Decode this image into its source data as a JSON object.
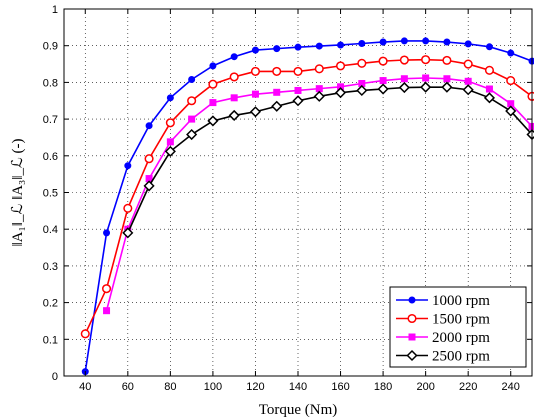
{
  "chart_data": {
    "type": "line",
    "xlabel": "Torque (Nm)",
    "ylabel": "‖A₁‖_ℒ ‖A₃‖_ℒ (-)",
    "xlim": [
      30,
      250
    ],
    "ylim": [
      0,
      1
    ],
    "x_ticks": [
      40,
      60,
      80,
      100,
      120,
      140,
      160,
      180,
      200,
      220,
      240
    ],
    "y_ticks": [
      0,
      0.1,
      0.2,
      0.3,
      0.4,
      0.5,
      0.6,
      0.7,
      0.8,
      0.9,
      1
    ],
    "y_tick_labels": [
      "0",
      "0.1",
      "0.2",
      "0.3",
      "0.4",
      "0.5",
      "0.6",
      "0.7",
      "0.8",
      "0.9",
      "1"
    ],
    "grid": true,
    "legend_position": "bottom-right",
    "series": [
      {
        "name": "1000 rpm",
        "color": "#0000ff",
        "marker": "circle-filled",
        "x": [
          40,
          50,
          60,
          70,
          80,
          90,
          100,
          110,
          120,
          130,
          140,
          150,
          160,
          170,
          180,
          190,
          200,
          210,
          220,
          230,
          240,
          250
        ],
        "y": [
          0.012,
          0.39,
          0.573,
          0.682,
          0.758,
          0.808,
          0.845,
          0.87,
          0.888,
          0.892,
          0.896,
          0.899,
          0.902,
          0.906,
          0.91,
          0.913,
          0.913,
          0.91,
          0.905,
          0.897,
          0.88,
          0.858
        ]
      },
      {
        "name": "1500 rpm",
        "color": "#ff0000",
        "marker": "circle-open",
        "x": [
          40,
          50,
          60,
          70,
          80,
          90,
          100,
          110,
          120,
          130,
          140,
          150,
          160,
          170,
          180,
          190,
          200,
          210,
          220,
          230,
          240,
          250
        ],
        "y": [
          0.115,
          0.238,
          0.457,
          0.592,
          0.69,
          0.75,
          0.795,
          0.815,
          0.83,
          0.83,
          0.83,
          0.837,
          0.845,
          0.852,
          0.858,
          0.861,
          0.862,
          0.86,
          0.85,
          0.833,
          0.805,
          0.762
        ]
      },
      {
        "name": "2000 rpm",
        "color": "#ff00ff",
        "marker": "square-filled",
        "x": [
          50,
          60,
          70,
          80,
          90,
          100,
          110,
          120,
          130,
          140,
          150,
          160,
          170,
          180,
          190,
          200,
          210,
          220,
          230,
          240,
          250
        ],
        "y": [
          0.178,
          0.4,
          0.538,
          0.638,
          0.7,
          0.745,
          0.758,
          0.768,
          0.773,
          0.778,
          0.783,
          0.788,
          0.797,
          0.805,
          0.81,
          0.812,
          0.81,
          0.803,
          0.782,
          0.742,
          0.68
        ]
      },
      {
        "name": "2500 rpm",
        "color": "#000000",
        "marker": "diamond-open",
        "x": [
          60,
          70,
          80,
          90,
          100,
          110,
          120,
          130,
          140,
          150,
          160,
          170,
          180,
          190,
          200,
          210,
          220,
          230,
          240,
          250
        ],
        "y": [
          0.39,
          0.518,
          0.612,
          0.658,
          0.695,
          0.71,
          0.72,
          0.735,
          0.75,
          0.762,
          0.772,
          0.778,
          0.782,
          0.786,
          0.787,
          0.787,
          0.78,
          0.758,
          0.722,
          0.658
        ]
      }
    ]
  }
}
